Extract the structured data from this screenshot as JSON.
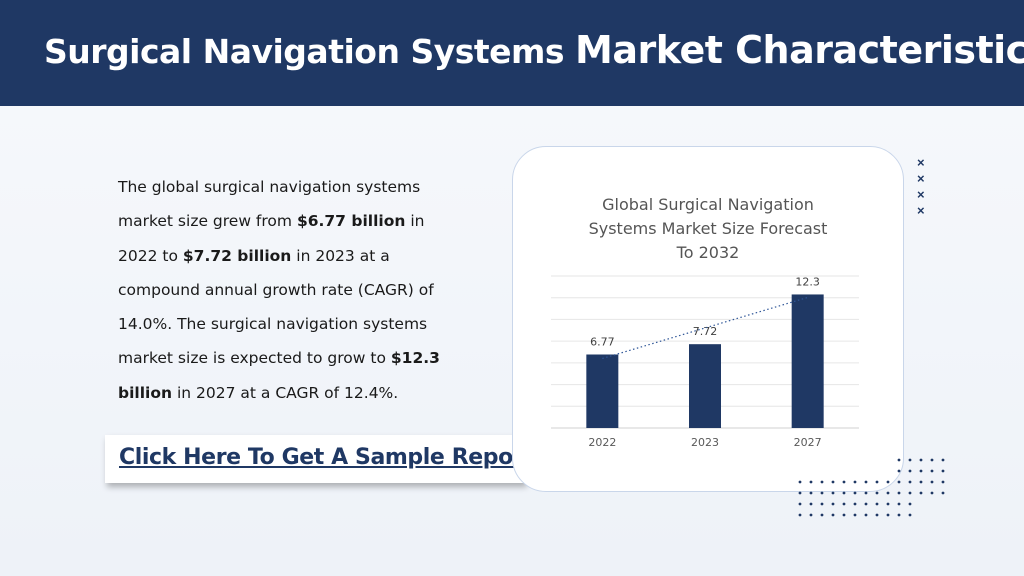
{
  "header": {
    "title_part1": "Surgical Navigation Systems ",
    "title_part2": "Market Characteristics:"
  },
  "body": {
    "p1": "The global surgical navigation systems market size grew from ",
    "b1": "$6.77 billion",
    "p2": " in 2022 to ",
    "b2": "$7.72 billion",
    "p3": " in 2023 at a compound annual growth rate (CAGR) of 14.0%. The surgical navigation systems market size is expected to grow to ",
    "b3": "$12.3 billion",
    "p4": " in 2027 at a CAGR of 12.4%."
  },
  "cta": {
    "label": "Click Here To Get A Sample Report"
  },
  "decorations": {
    "cross_icon": "×",
    "accent_color": "#1f3864"
  },
  "chart_data": {
    "type": "bar",
    "title_lines": [
      "Global Surgical Navigation",
      "Systems Market Size Forecast",
      "To 2032"
    ],
    "categories": [
      "2022",
      "2023",
      "2027"
    ],
    "values": [
      6.77,
      7.72,
      12.3
    ],
    "value_labels": [
      "6.77",
      "7.72",
      "12.3"
    ],
    "ylim": [
      0,
      14
    ],
    "grid": true,
    "trendline": true,
    "bar_color": "#1f3864"
  }
}
